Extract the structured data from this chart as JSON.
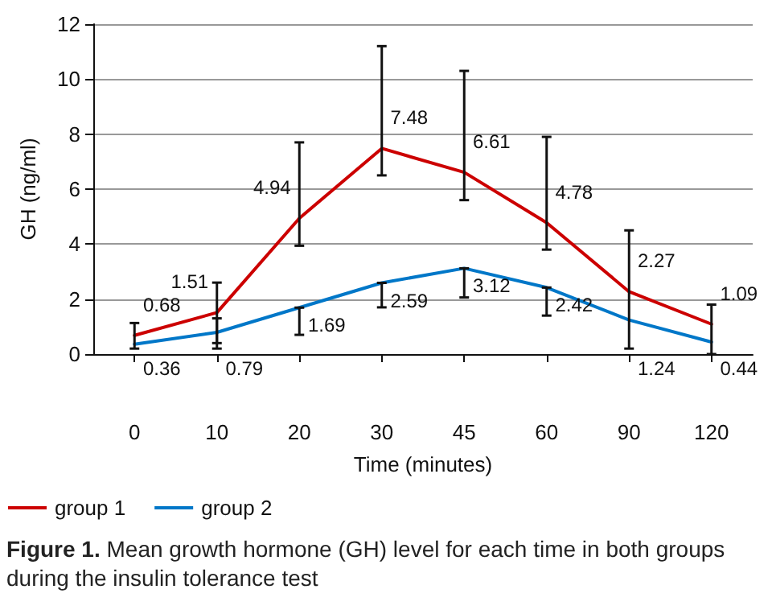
{
  "chart_data": {
    "type": "line",
    "xlabel": "Time (minutes)",
    "ylabel": "GH (ng/ml)",
    "categories": [
      "0",
      "10",
      "20",
      "30",
      "45",
      "60",
      "90",
      "120"
    ],
    "series": [
      {
        "name": "group 1",
        "color": "#cc0000",
        "values": [
          0.68,
          1.51,
          4.94,
          7.48,
          6.61,
          4.78,
          2.27,
          1.09
        ],
        "errors": [
          [
            0.2,
            1.13
          ],
          [
            0.4,
            2.6
          ],
          [
            3.94,
            7.7
          ],
          [
            6.5,
            11.2
          ],
          [
            5.6,
            10.3
          ],
          [
            3.8,
            7.9
          ],
          [
            0.2,
            4.5
          ],
          [
            0,
            1.8
          ]
        ]
      },
      {
        "name": "group 2",
        "color": "#0077c8",
        "values": [
          0.36,
          0.79,
          1.69,
          2.59,
          3.12,
          2.42,
          1.24,
          0.44
        ],
        "errors": [
          null,
          [
            0.2,
            1.3
          ],
          [
            0.7,
            1.69
          ],
          [
            1.7,
            2.59
          ],
          [
            2.06,
            3.12
          ],
          [
            1.4,
            2.42
          ],
          null,
          null
        ]
      }
    ],
    "ylim": [
      0,
      12
    ],
    "yticks": [
      0,
      2,
      4,
      6,
      8,
      10,
      12
    ],
    "grid": "y",
    "legend": "bottom left",
    "marker": "none",
    "line_style": "solid",
    "data_labels": true,
    "annotations": [
      "Figure 1. Mean growth hormone (GH) level for each time in both groups during the insulin tolerance test"
    ]
  }
}
